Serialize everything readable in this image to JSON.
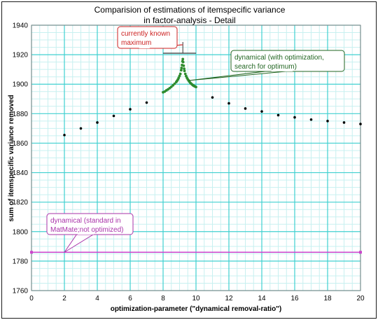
{
  "chart_data": {
    "type": "scatter",
    "title_lines": [
      "Comparision of estimations of itemspecific variance",
      "in factor-analysis - Detail"
    ],
    "xlabel": "optimization-parameter (\"dynamical removal-ratio\")",
    "ylabel": "sum of itemspecific variance removed",
    "xlim": [
      0,
      20
    ],
    "ylim": [
      1760,
      1940
    ],
    "x_ticks": [
      0,
      2,
      4,
      6,
      8,
      10,
      12,
      14,
      16,
      18,
      20
    ],
    "y_ticks": [
      1760,
      1780,
      1800,
      1820,
      1840,
      1860,
      1880,
      1900,
      1920,
      1940
    ],
    "grid": true,
    "colors": {
      "major_grid": "#40d0d0",
      "minor_grid": "#c8f0f0",
      "dynamical_points": "#000000",
      "optimized_points": "#2e8b2e",
      "standard_line": "#cc44cc",
      "known_maximum": "#000000"
    },
    "series": [
      {
        "key": "dynamical",
        "style": "markers",
        "x": [
          2,
          3,
          4,
          5,
          6,
          7,
          11,
          12,
          13,
          14,
          15,
          16,
          17,
          18,
          19,
          20
        ],
        "y": [
          1865.5,
          1870,
          1874,
          1878.5,
          1883,
          1887.5,
          1891,
          1887,
          1883.5,
          1881.5,
          1879,
          1877.5,
          1876,
          1875,
          1874,
          1873
        ]
      },
      {
        "key": "optimized",
        "style": "markers",
        "x": [
          8.0,
          8.1,
          8.2,
          8.3,
          8.4,
          8.5,
          8.6,
          8.7,
          8.8,
          8.85,
          8.9,
          8.95,
          9.0,
          9.05,
          9.1,
          9.12,
          9.15,
          9.18,
          9.2,
          9.22,
          9.25,
          9.28,
          9.3,
          9.35,
          9.4,
          9.45,
          9.5,
          9.55,
          9.6,
          9.65,
          9.7,
          9.75,
          9.8,
          9.85,
          9.9,
          9.95,
          10.0
        ],
        "y": [
          1894.5,
          1895,
          1895.8,
          1896.5,
          1897.3,
          1898.2,
          1899.2,
          1900.3,
          1901.5,
          1902.3,
          1903.2,
          1904.3,
          1905.6,
          1907,
          1909.5,
          1911,
          1913,
          1915.5,
          1917,
          1915,
          1912.5,
          1910.5,
          1909,
          1907,
          1905.5,
          1904.3,
          1903.3,
          1902.5,
          1901.7,
          1901,
          1900.4,
          1899.9,
          1899.4,
          1899,
          1898.7,
          1898.4,
          1898.1
        ]
      },
      {
        "key": "standard",
        "style": "line",
        "x": [
          0,
          2,
          20
        ],
        "y": [
          1786,
          1786,
          1786
        ]
      }
    ],
    "known_maximum": {
      "y": 1921,
      "x_from": 8.0,
      "x_to": 10.0,
      "x_marker": 9.2
    },
    "annotations": [
      {
        "key": "known_max",
        "text_lines": [
          "currently known",
          "maximum"
        ],
        "color": "#cc2222"
      },
      {
        "key": "optimized",
        "text_lines": [
          "dynamical (with optimization,",
          "search for optimum)"
        ],
        "color": "#226622"
      },
      {
        "key": "standard",
        "text_lines": [
          "dynamical (standard in",
          "MatMate;not optimized)"
        ],
        "color": "#aa33aa"
      }
    ]
  }
}
